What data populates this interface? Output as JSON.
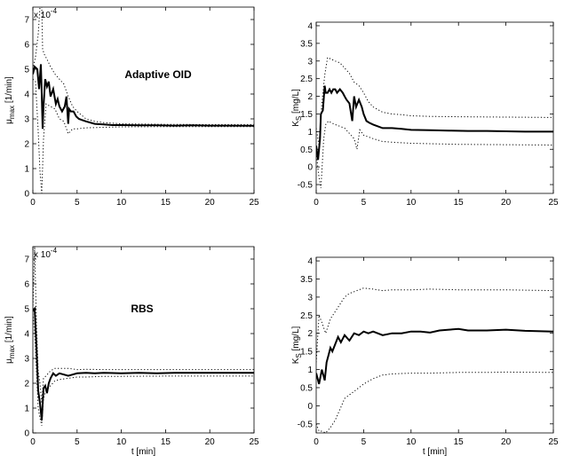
{
  "chart_data": [
    {
      "type": "line",
      "annotation": "Adaptive OID",
      "ylabel_main": "μ",
      "ylabel_sub": "max",
      "ylabel_unit": " [1/min]",
      "exponent_base": "x 10",
      "exponent_power": "-4",
      "xlabel": "",
      "xlim": [
        0,
        25
      ],
      "ylim": [
        0,
        7.5
      ],
      "xticks": [
        0,
        5,
        10,
        15,
        20,
        25
      ],
      "yticks": [
        0,
        1,
        2,
        3,
        4,
        5,
        6,
        7
      ],
      "grid": false,
      "series": [
        {
          "style": "solid",
          "x": [
            0,
            0.2,
            0.5,
            0.7,
            0.9,
            1.0,
            1.1,
            1.2,
            1.4,
            1.6,
            1.8,
            2.0,
            2.3,
            2.6,
            2.8,
            3.0,
            3.3,
            3.6,
            3.8,
            4.0,
            4.1,
            4.3,
            4.6,
            4.9,
            5.2,
            5.6,
            6,
            7,
            8,
            9,
            10,
            12,
            14,
            16,
            18,
            20,
            22,
            25
          ],
          "y": [
            4.8,
            5.1,
            5.0,
            4.2,
            5.2,
            4.0,
            2.6,
            3.5,
            4.6,
            4.3,
            4.5,
            3.9,
            4.2,
            3.6,
            3.8,
            3.5,
            3.3,
            3.5,
            3.9,
            2.8,
            3.4,
            3.3,
            3.3,
            3.1,
            3.0,
            2.95,
            2.9,
            2.8,
            2.78,
            2.75,
            2.75,
            2.74,
            2.74,
            2.73,
            2.74,
            2.73,
            2.73,
            2.72
          ]
        },
        {
          "style": "dotted",
          "x": [
            0,
            0.3,
            0.6,
            0.8,
            1.0,
            1.1,
            1.3,
            1.6,
            2.0,
            2.5,
            3.0,
            3.5,
            4.0,
            4.5,
            5,
            6,
            7,
            8,
            10,
            15,
            20,
            25
          ],
          "y": [
            5.0,
            5.5,
            6.4,
            7.5,
            7.5,
            5.8,
            5.6,
            5.4,
            5.1,
            4.8,
            4.6,
            4.4,
            3.9,
            3.5,
            3.3,
            3.0,
            2.9,
            2.85,
            2.8,
            2.78,
            2.77,
            2.77
          ]
        },
        {
          "style": "dotted",
          "x": [
            0,
            0.3,
            0.6,
            0.8,
            1.0,
            1.2,
            1.5,
            2.0,
            2.5,
            3.0,
            3.5,
            4.0,
            4.5,
            5,
            6,
            8,
            10,
            15,
            20,
            25
          ],
          "y": [
            4.6,
            4.5,
            2.5,
            0.9,
            0.0,
            2.2,
            3.6,
            3.5,
            3.4,
            3.0,
            2.9,
            2.4,
            2.6,
            2.6,
            2.64,
            2.66,
            2.68,
            2.69,
            2.69,
            2.69
          ]
        }
      ]
    },
    {
      "type": "line",
      "annotation": "",
      "ylabel_main": "K",
      "ylabel_sub": "S",
      "ylabel_unit": " [mg/L]",
      "exponent_base": "",
      "exponent_power": "",
      "xlabel": "",
      "xlim": [
        0,
        25
      ],
      "ylim": [
        -0.75,
        4.1
      ],
      "xticks": [
        0,
        5,
        10,
        15,
        20,
        25
      ],
      "yticks": [
        -0.5,
        0,
        0.5,
        1,
        1.5,
        2,
        2.5,
        3,
        3.5,
        4
      ],
      "grid": false,
      "series": [
        {
          "style": "solid",
          "x": [
            0,
            0.2,
            0.4,
            0.5,
            0.7,
            0.9,
            1.0,
            1.2,
            1.4,
            1.6,
            1.8,
            2.0,
            2.2,
            2.5,
            2.8,
            3.0,
            3.2,
            3.5,
            3.8,
            4.0,
            4.2,
            4.5,
            4.8,
            5.0,
            5.3,
            5.6,
            6,
            7,
            8,
            9,
            10,
            12,
            14,
            16,
            18,
            20,
            22,
            25
          ],
          "y": [
            0.6,
            0.2,
            0.8,
            1.5,
            1.6,
            2.3,
            2.1,
            2.1,
            2.2,
            2.1,
            2.2,
            2.2,
            2.1,
            2.2,
            2.1,
            2.0,
            1.9,
            1.8,
            1.3,
            2.0,
            1.7,
            1.9,
            1.7,
            1.5,
            1.3,
            1.25,
            1.2,
            1.1,
            1.1,
            1.08,
            1.05,
            1.04,
            1.03,
            1.02,
            1.02,
            1.01,
            1.0,
            1.0
          ]
        },
        {
          "style": "dotted",
          "x": [
            0,
            0.3,
            0.6,
            0.9,
            1.2,
            1.6,
            2.0,
            2.5,
            3.0,
            3.5,
            4.0,
            4.5,
            5.0,
            5.5,
            6,
            7,
            8,
            9,
            10,
            12,
            15,
            20,
            25
          ],
          "y": [
            1.1,
            0.6,
            1.8,
            2.6,
            3.1,
            3.05,
            3.0,
            2.95,
            2.8,
            2.65,
            2.4,
            2.3,
            2.1,
            1.85,
            1.7,
            1.55,
            1.5,
            1.48,
            1.45,
            1.43,
            1.42,
            1.41,
            1.4
          ]
        },
        {
          "style": "dotted",
          "x": [
            0,
            0.3,
            0.5,
            0.8,
            1.0,
            1.3,
            1.6,
            2.0,
            2.5,
            3.0,
            3.5,
            4.0,
            4.3,
            4.6,
            5.0,
            5.5,
            6,
            7,
            8,
            10,
            15,
            20,
            25
          ],
          "y": [
            0.4,
            -0.3,
            -0.6,
            0.8,
            1.2,
            1.3,
            1.25,
            1.2,
            1.15,
            1.1,
            0.95,
            0.8,
            0.5,
            1.05,
            0.9,
            0.85,
            0.8,
            0.72,
            0.7,
            0.67,
            0.64,
            0.63,
            0.62
          ]
        }
      ]
    },
    {
      "type": "line",
      "annotation": "RBS",
      "ylabel_main": "μ",
      "ylabel_sub": "max",
      "ylabel_unit": " [1/min]",
      "exponent_base": "x 10",
      "exponent_power": "-4",
      "xlabel": "t [min]",
      "xlim": [
        0,
        25
      ],
      "ylim": [
        0,
        7.5
      ],
      "xticks": [
        0,
        5,
        10,
        15,
        20,
        25
      ],
      "yticks": [
        0,
        1,
        2,
        3,
        4,
        5,
        6,
        7
      ],
      "grid": false,
      "series": [
        {
          "style": "solid",
          "x": [
            0,
            0.2,
            0.4,
            0.6,
            0.8,
            1.0,
            1.2,
            1.4,
            1.6,
            1.8,
            2.0,
            2.3,
            2.6,
            3.0,
            3.5,
            4.0,
            4.5,
            5,
            6,
            7,
            8,
            10,
            12,
            14,
            16,
            18,
            20,
            22,
            25
          ],
          "y": [
            4.9,
            5.0,
            3.5,
            1.7,
            1.2,
            0.5,
            1.8,
            1.9,
            1.6,
            2.0,
            2.2,
            2.4,
            2.3,
            2.4,
            2.35,
            2.3,
            2.35,
            2.4,
            2.42,
            2.4,
            2.42,
            2.4,
            2.42,
            2.4,
            2.42,
            2.42,
            2.42,
            2.42,
            2.42
          ]
        },
        {
          "style": "dotted",
          "x": [
            0,
            0.2,
            0.4,
            0.6,
            0.8,
            1.0,
            1.2,
            1.5,
            2.0,
            2.5,
            3.0,
            4.0,
            5,
            6,
            8,
            10,
            15,
            20,
            25
          ],
          "y": [
            5.0,
            7.5,
            4.5,
            2.5,
            2.0,
            1.2,
            2.2,
            2.3,
            2.5,
            2.6,
            2.6,
            2.6,
            2.55,
            2.56,
            2.55,
            2.55,
            2.55,
            2.55,
            2.55
          ]
        },
        {
          "style": "dotted",
          "x": [
            0,
            0.2,
            0.4,
            0.6,
            0.8,
            1.0,
            1.2,
            1.5,
            2.0,
            2.5,
            3.0,
            4.0,
            5,
            6,
            8,
            10,
            15,
            20,
            25
          ],
          "y": [
            4.8,
            4.0,
            2.5,
            1.0,
            0.6,
            0.3,
            1.4,
            1.7,
            1.9,
            2.1,
            2.15,
            2.2,
            2.25,
            2.25,
            2.28,
            2.28,
            2.29,
            2.29,
            2.29
          ]
        }
      ]
    },
    {
      "type": "line",
      "annotation": "",
      "ylabel_main": "K",
      "ylabel_sub": "S",
      "ylabel_unit": " [mg/L]",
      "exponent_base": "",
      "exponent_power": "",
      "xlabel": "t [min]",
      "xlim": [
        0,
        25
      ],
      "ylim": [
        -0.75,
        4.1
      ],
      "xticks": [
        0,
        5,
        10,
        15,
        20,
        25
      ],
      "yticks": [
        -0.5,
        0,
        0.5,
        1,
        1.5,
        2,
        2.5,
        3,
        3.5,
        4
      ],
      "grid": false,
      "series": [
        {
          "style": "solid",
          "x": [
            0,
            0.3,
            0.6,
            0.9,
            1.1,
            1.3,
            1.5,
            1.7,
            2.0,
            2.3,
            2.6,
            3.0,
            3.5,
            4.0,
            4.5,
            5,
            5.5,
            6,
            7,
            8,
            9,
            10,
            11,
            12,
            13,
            14,
            15,
            16,
            18,
            20,
            22,
            25
          ],
          "y": [
            0.9,
            0.6,
            1.0,
            0.7,
            1.2,
            1.4,
            1.6,
            1.5,
            1.7,
            1.9,
            1.75,
            1.95,
            1.8,
            2.0,
            1.95,
            2.05,
            2.0,
            2.05,
            1.95,
            2.0,
            2.0,
            2.05,
            2.05,
            2.02,
            2.08,
            2.1,
            2.12,
            2.08,
            2.08,
            2.1,
            2.07,
            2.05
          ]
        },
        {
          "style": "dotted",
          "x": [
            0,
            0.3,
            0.6,
            1.0,
            1.5,
            2.0,
            2.5,
            3.0,
            3.5,
            4.0,
            4.5,
            5,
            6,
            7,
            8,
            10,
            12,
            15,
            18,
            20,
            25
          ],
          "y": [
            1.2,
            2.5,
            2.3,
            2.0,
            2.4,
            2.6,
            2.8,
            3.0,
            3.1,
            3.15,
            3.2,
            3.25,
            3.22,
            3.18,
            3.2,
            3.2,
            3.22,
            3.2,
            3.2,
            3.2,
            3.18
          ]
        },
        {
          "style": "dotted",
          "x": [
            0,
            0.3,
            0.6,
            1.0,
            1.5,
            2.0,
            2.5,
            3.0,
            3.5,
            4.0,
            4.5,
            5,
            6,
            7,
            8,
            10,
            12,
            15,
            18,
            20,
            25
          ],
          "y": [
            -0.5,
            -0.7,
            -0.7,
            -0.75,
            -0.6,
            -0.4,
            -0.1,
            0.2,
            0.3,
            0.4,
            0.5,
            0.6,
            0.75,
            0.85,
            0.88,
            0.9,
            0.9,
            0.92,
            0.92,
            0.93,
            0.92
          ]
        }
      ]
    }
  ]
}
